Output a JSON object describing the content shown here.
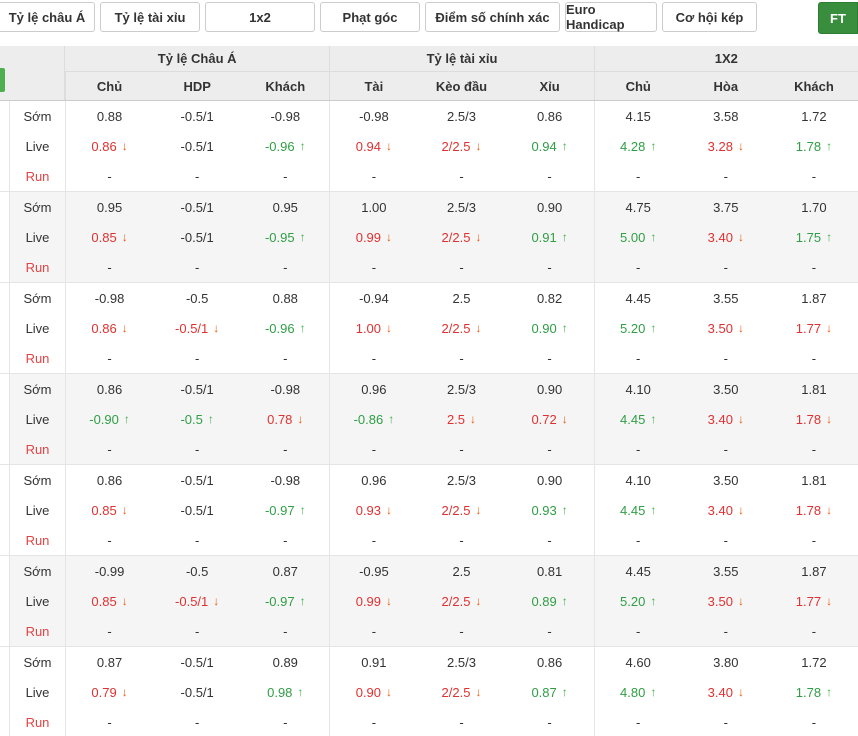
{
  "tabs": [
    "Tỷ lệ châu Á",
    "Tỷ lệ tài xỉu",
    "1x2",
    "Phạt góc",
    "Điểm số chính xác",
    "Euro Handicap",
    "Cơ hội kép"
  ],
  "ft_label": "FT",
  "colors": {
    "accent_green": "#388e3c",
    "badge_green": "#4caf50",
    "odds_up": "#2f9e44",
    "odds_down": "#e03131",
    "arrow_down": "#e8590c",
    "header_bg": "#ededed",
    "alt_row_bg": "#f5f5f5"
  },
  "table": {
    "groups": [
      {
        "title": "Tỷ lệ Châu Á",
        "columns": [
          "Chủ",
          "HDP",
          "Khách"
        ]
      },
      {
        "title": "Tỷ lệ tài xỉu",
        "columns": [
          "Tài",
          "Kèo đầu",
          "Xỉu"
        ]
      },
      {
        "title": "1X2",
        "columns": [
          "Chủ",
          "Hòa",
          "Khách"
        ]
      }
    ],
    "blocks": [
      {
        "rows": [
          {
            "key": "early",
            "label": "Sớm",
            "cells": [
              {
                "v": "0.88"
              },
              {
                "v": "-0.5/1"
              },
              {
                "v": "-0.98"
              },
              {
                "v": "-0.98"
              },
              {
                "v": "2.5/3"
              },
              {
                "v": "0.86"
              },
              {
                "v": "4.15"
              },
              {
                "v": "3.58"
              },
              {
                "v": "1.72"
              }
            ]
          },
          {
            "key": "live",
            "label": "Live",
            "cells": [
              {
                "v": "0.86",
                "t": "down"
              },
              {
                "v": "-0.5/1"
              },
              {
                "v": "-0.96",
                "t": "up"
              },
              {
                "v": "0.94",
                "t": "down"
              },
              {
                "v": "2/2.5",
                "t": "down"
              },
              {
                "v": "0.94",
                "t": "up"
              },
              {
                "v": "4.28",
                "t": "up"
              },
              {
                "v": "3.28",
                "t": "down"
              },
              {
                "v": "1.78",
                "t": "up"
              }
            ]
          },
          {
            "key": "run",
            "label": "Run",
            "cells": [
              {
                "v": "-"
              },
              {
                "v": "-"
              },
              {
                "v": "-"
              },
              {
                "v": "-"
              },
              {
                "v": "-"
              },
              {
                "v": "-"
              },
              {
                "v": "-"
              },
              {
                "v": "-"
              },
              {
                "v": "-"
              }
            ]
          }
        ]
      },
      {
        "rows": [
          {
            "key": "early",
            "label": "Sớm",
            "cells": [
              {
                "v": "0.95"
              },
              {
                "v": "-0.5/1"
              },
              {
                "v": "0.95"
              },
              {
                "v": "1.00"
              },
              {
                "v": "2.5/3"
              },
              {
                "v": "0.90"
              },
              {
                "v": "4.75"
              },
              {
                "v": "3.75"
              },
              {
                "v": "1.70"
              }
            ]
          },
          {
            "key": "live",
            "label": "Live",
            "cells": [
              {
                "v": "0.85",
                "t": "down"
              },
              {
                "v": "-0.5/1"
              },
              {
                "v": "-0.95",
                "t": "up"
              },
              {
                "v": "0.99",
                "t": "down"
              },
              {
                "v": "2/2.5",
                "t": "down"
              },
              {
                "v": "0.91",
                "t": "up"
              },
              {
                "v": "5.00",
                "t": "up"
              },
              {
                "v": "3.40",
                "t": "down"
              },
              {
                "v": "1.75",
                "t": "up"
              }
            ]
          },
          {
            "key": "run",
            "label": "Run",
            "cells": [
              {
                "v": "-"
              },
              {
                "v": "-"
              },
              {
                "v": "-"
              },
              {
                "v": "-"
              },
              {
                "v": "-"
              },
              {
                "v": "-"
              },
              {
                "v": "-"
              },
              {
                "v": "-"
              },
              {
                "v": "-"
              }
            ]
          }
        ]
      },
      {
        "rows": [
          {
            "key": "early",
            "label": "Sớm",
            "cells": [
              {
                "v": "-0.98"
              },
              {
                "v": "-0.5"
              },
              {
                "v": "0.88"
              },
              {
                "v": "-0.94"
              },
              {
                "v": "2.5"
              },
              {
                "v": "0.82"
              },
              {
                "v": "4.45"
              },
              {
                "v": "3.55"
              },
              {
                "v": "1.87"
              }
            ]
          },
          {
            "key": "live",
            "label": "Live",
            "cells": [
              {
                "v": "0.86",
                "t": "down"
              },
              {
                "v": "-0.5/1",
                "t": "down"
              },
              {
                "v": "-0.96",
                "t": "up"
              },
              {
                "v": "1.00",
                "t": "down"
              },
              {
                "v": "2/2.5",
                "t": "down"
              },
              {
                "v": "0.90",
                "t": "up"
              },
              {
                "v": "5.20",
                "t": "up"
              },
              {
                "v": "3.50",
                "t": "down"
              },
              {
                "v": "1.77",
                "t": "down"
              }
            ]
          },
          {
            "key": "run",
            "label": "Run",
            "cells": [
              {
                "v": "-"
              },
              {
                "v": "-"
              },
              {
                "v": "-"
              },
              {
                "v": "-"
              },
              {
                "v": "-"
              },
              {
                "v": "-"
              },
              {
                "v": "-"
              },
              {
                "v": "-"
              },
              {
                "v": "-"
              }
            ]
          }
        ]
      },
      {
        "rows": [
          {
            "key": "early",
            "label": "Sớm",
            "cells": [
              {
                "v": "0.86"
              },
              {
                "v": "-0.5/1"
              },
              {
                "v": "-0.98"
              },
              {
                "v": "0.96"
              },
              {
                "v": "2.5/3"
              },
              {
                "v": "0.90"
              },
              {
                "v": "4.10"
              },
              {
                "v": "3.50"
              },
              {
                "v": "1.81"
              }
            ]
          },
          {
            "key": "live",
            "label": "Live",
            "cells": [
              {
                "v": "-0.90",
                "t": "up"
              },
              {
                "v": "-0.5",
                "t": "up"
              },
              {
                "v": "0.78",
                "t": "down"
              },
              {
                "v": "-0.86",
                "t": "up"
              },
              {
                "v": "2.5",
                "t": "down"
              },
              {
                "v": "0.72",
                "t": "down"
              },
              {
                "v": "4.45",
                "t": "up"
              },
              {
                "v": "3.40",
                "t": "down"
              },
              {
                "v": "1.78",
                "t": "down"
              }
            ]
          },
          {
            "key": "run",
            "label": "Run",
            "cells": [
              {
                "v": "-"
              },
              {
                "v": "-"
              },
              {
                "v": "-"
              },
              {
                "v": "-"
              },
              {
                "v": "-"
              },
              {
                "v": "-"
              },
              {
                "v": "-"
              },
              {
                "v": "-"
              },
              {
                "v": "-"
              }
            ]
          }
        ]
      },
      {
        "rows": [
          {
            "key": "early",
            "label": "Sớm",
            "cells": [
              {
                "v": "0.86"
              },
              {
                "v": "-0.5/1"
              },
              {
                "v": "-0.98"
              },
              {
                "v": "0.96"
              },
              {
                "v": "2.5/3"
              },
              {
                "v": "0.90"
              },
              {
                "v": "4.10"
              },
              {
                "v": "3.50"
              },
              {
                "v": "1.81"
              }
            ]
          },
          {
            "key": "live",
            "label": "Live",
            "cells": [
              {
                "v": "0.85",
                "t": "down"
              },
              {
                "v": "-0.5/1"
              },
              {
                "v": "-0.97",
                "t": "up"
              },
              {
                "v": "0.93",
                "t": "down"
              },
              {
                "v": "2/2.5",
                "t": "down"
              },
              {
                "v": "0.93",
                "t": "up"
              },
              {
                "v": "4.45",
                "t": "up"
              },
              {
                "v": "3.40",
                "t": "down"
              },
              {
                "v": "1.78",
                "t": "down"
              }
            ]
          },
          {
            "key": "run",
            "label": "Run",
            "cells": [
              {
                "v": "-"
              },
              {
                "v": "-"
              },
              {
                "v": "-"
              },
              {
                "v": "-"
              },
              {
                "v": "-"
              },
              {
                "v": "-"
              },
              {
                "v": "-"
              },
              {
                "v": "-"
              },
              {
                "v": "-"
              }
            ]
          }
        ]
      },
      {
        "rows": [
          {
            "key": "early",
            "label": "Sớm",
            "cells": [
              {
                "v": "-0.99"
              },
              {
                "v": "-0.5"
              },
              {
                "v": "0.87"
              },
              {
                "v": "-0.95"
              },
              {
                "v": "2.5"
              },
              {
                "v": "0.81"
              },
              {
                "v": "4.45"
              },
              {
                "v": "3.55"
              },
              {
                "v": "1.87"
              }
            ]
          },
          {
            "key": "live",
            "label": "Live",
            "cells": [
              {
                "v": "0.85",
                "t": "down"
              },
              {
                "v": "-0.5/1",
                "t": "down"
              },
              {
                "v": "-0.97",
                "t": "up"
              },
              {
                "v": "0.99",
                "t": "down"
              },
              {
                "v": "2/2.5",
                "t": "down"
              },
              {
                "v": "0.89",
                "t": "up"
              },
              {
                "v": "5.20",
                "t": "up"
              },
              {
                "v": "3.50",
                "t": "down"
              },
              {
                "v": "1.77",
                "t": "down"
              }
            ]
          },
          {
            "key": "run",
            "label": "Run",
            "cells": [
              {
                "v": "-"
              },
              {
                "v": "-"
              },
              {
                "v": "-"
              },
              {
                "v": "-"
              },
              {
                "v": "-"
              },
              {
                "v": "-"
              },
              {
                "v": "-"
              },
              {
                "v": "-"
              },
              {
                "v": "-"
              }
            ]
          }
        ]
      },
      {
        "rows": [
          {
            "key": "early",
            "label": "Sớm",
            "cells": [
              {
                "v": "0.87"
              },
              {
                "v": "-0.5/1"
              },
              {
                "v": "0.89"
              },
              {
                "v": "0.91"
              },
              {
                "v": "2.5/3"
              },
              {
                "v": "0.86"
              },
              {
                "v": "4.60"
              },
              {
                "v": "3.80"
              },
              {
                "v": "1.72"
              }
            ]
          },
          {
            "key": "live",
            "label": "Live",
            "cells": [
              {
                "v": "0.79",
                "t": "down"
              },
              {
                "v": "-0.5/1"
              },
              {
                "v": "0.98",
                "t": "up"
              },
              {
                "v": "0.90",
                "t": "down"
              },
              {
                "v": "2/2.5",
                "t": "down"
              },
              {
                "v": "0.87",
                "t": "up"
              },
              {
                "v": "4.80",
                "t": "up"
              },
              {
                "v": "3.40",
                "t": "down"
              },
              {
                "v": "1.78",
                "t": "up"
              }
            ]
          },
          {
            "key": "run",
            "label": "Run",
            "cells": [
              {
                "v": "-"
              },
              {
                "v": "-"
              },
              {
                "v": "-"
              },
              {
                "v": "-"
              },
              {
                "v": "-"
              },
              {
                "v": "-"
              },
              {
                "v": "-"
              },
              {
                "v": "-"
              },
              {
                "v": "-"
              }
            ]
          }
        ]
      }
    ]
  }
}
